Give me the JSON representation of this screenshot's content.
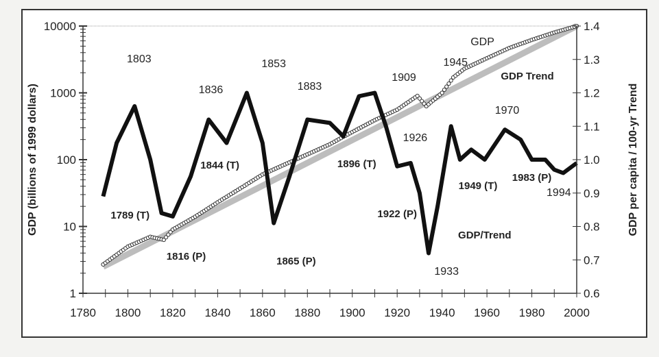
{
  "chart_data": {
    "type": "line",
    "title": "",
    "xlabel": "",
    "ylabel": "GDP (billions of 1999 dollars)",
    "y2label": "GDP per capita / 100-yr Trend",
    "xlim": [
      1780,
      2000
    ],
    "ylim": [
      1,
      10000
    ],
    "yscale": "log",
    "y2lim": [
      0.6,
      1.4
    ],
    "x_ticks": [
      "1780",
      "1800",
      "1820",
      "1840",
      "1860",
      "1880",
      "1900",
      "1920",
      "1940",
      "1960",
      "1980",
      "2000"
    ],
    "y_ticks": [
      "1",
      "10",
      "100",
      "1000",
      "10000"
    ],
    "y2_ticks": [
      "0.6",
      "0.7",
      "0.8",
      "0.9",
      "1.0",
      "1.1",
      "1.2",
      "1.3",
      "1.4"
    ],
    "colors": {
      "gdp": "#333333",
      "trend": "#bdbdbd",
      "ratio": "#111111"
    },
    "series": [
      {
        "name": "GDP",
        "axis": "left",
        "x": [
          1789,
          1800,
          1810,
          1816,
          1820,
          1830,
          1840,
          1850,
          1860,
          1870,
          1880,
          1890,
          1896,
          1910,
          1920,
          1929,
          1933,
          1940,
          1945,
          1950,
          1960,
          1970,
          1980,
          1990,
          2000
        ],
        "y": [
          2.7,
          5,
          7,
          6.3,
          9,
          14,
          23,
          37,
          60,
          85,
          120,
          170,
          220,
          390,
          560,
          900,
          630,
          1000,
          1700,
          2300,
          3300,
          4700,
          6200,
          8000,
          10000
        ]
      },
      {
        "name": "GDP Trend",
        "axis": "left",
        "x": [
          1789,
          2000
        ],
        "y": [
          2.5,
          10000
        ]
      },
      {
        "name": "GDP/Trend",
        "axis": "right",
        "x": [
          1789,
          1795,
          1803,
          1810,
          1815,
          1820,
          1828,
          1836,
          1844,
          1853,
          1860,
          1865,
          1872,
          1880,
          1890,
          1896,
          1903,
          1910,
          1915,
          1920,
          1926,
          1930,
          1934,
          1938,
          1944,
          1948,
          1953,
          1959,
          1968,
          1975,
          1980,
          1986,
          1990,
          1994,
          2000
        ],
        "y": [
          0.89,
          1.05,
          1.16,
          1.0,
          0.84,
          0.83,
          0.95,
          1.12,
          1.05,
          1.2,
          1.05,
          0.81,
          0.95,
          1.12,
          1.11,
          1.07,
          1.19,
          1.2,
          1.1,
          0.98,
          0.99,
          0.9,
          0.72,
          0.86,
          1.1,
          1.0,
          1.03,
          1.0,
          1.09,
          1.06,
          1.0,
          1.0,
          0.97,
          0.96,
          0.99
        ]
      }
    ],
    "annotations": [
      {
        "text": "1803",
        "x": 1805,
        "y": 1.304,
        "bold": false
      },
      {
        "text": "1836",
        "x": 1837,
        "y": 1.211,
        "bold": false
      },
      {
        "text": "1853",
        "x": 1865,
        "y": 1.289,
        "bold": false
      },
      {
        "text": "1883",
        "x": 1881,
        "y": 1.222,
        "bold": false
      },
      {
        "text": "1909",
        "x": 1923,
        "y": 1.248,
        "bold": false
      },
      {
        "text": "1945",
        "x": 1946,
        "y": 1.293,
        "bold": false
      },
      {
        "text": "1970",
        "x": 1969,
        "y": 1.15,
        "bold": false
      },
      {
        "text": "1926",
        "x": 1928,
        "y": 1.068,
        "bold": false
      },
      {
        "text": "GDP",
        "x": 1958,
        "y": 1.355,
        "bold": false
      },
      {
        "text": "GDP Trend",
        "x": 1978,
        "y": 1.252,
        "bold": true,
        "muted": true
      },
      {
        "text": "1844 (T)",
        "x": 1841,
        "y": 0.986,
        "bold": true
      },
      {
        "text": "1896 (T)",
        "x": 1902,
        "y": 0.99,
        "bold": true
      },
      {
        "text": "1789 (T)",
        "x": 1801,
        "y": 0.836,
        "bold": true
      },
      {
        "text": "1922 (P)",
        "x": 1920,
        "y": 0.84,
        "bold": true
      },
      {
        "text": "1816 (P)",
        "x": 1826,
        "y": 0.713,
        "bold": true
      },
      {
        "text": "1865 (P)",
        "x": 1875,
        "y": 0.698,
        "bold": true
      },
      {
        "text": "GDP/Trend",
        "x": 1959,
        "y": 0.776,
        "bold": true
      },
      {
        "text": "1933",
        "x": 1942,
        "y": 0.668,
        "bold": false
      },
      {
        "text": "1949 (T)",
        "x": 1956,
        "y": 0.924,
        "bold": true
      },
      {
        "text": "1983 (P)",
        "x": 1980,
        "y": 0.949,
        "bold": true
      },
      {
        "text": "1994",
        "x": 1992,
        "y": 0.904,
        "bold": false
      }
    ]
  }
}
